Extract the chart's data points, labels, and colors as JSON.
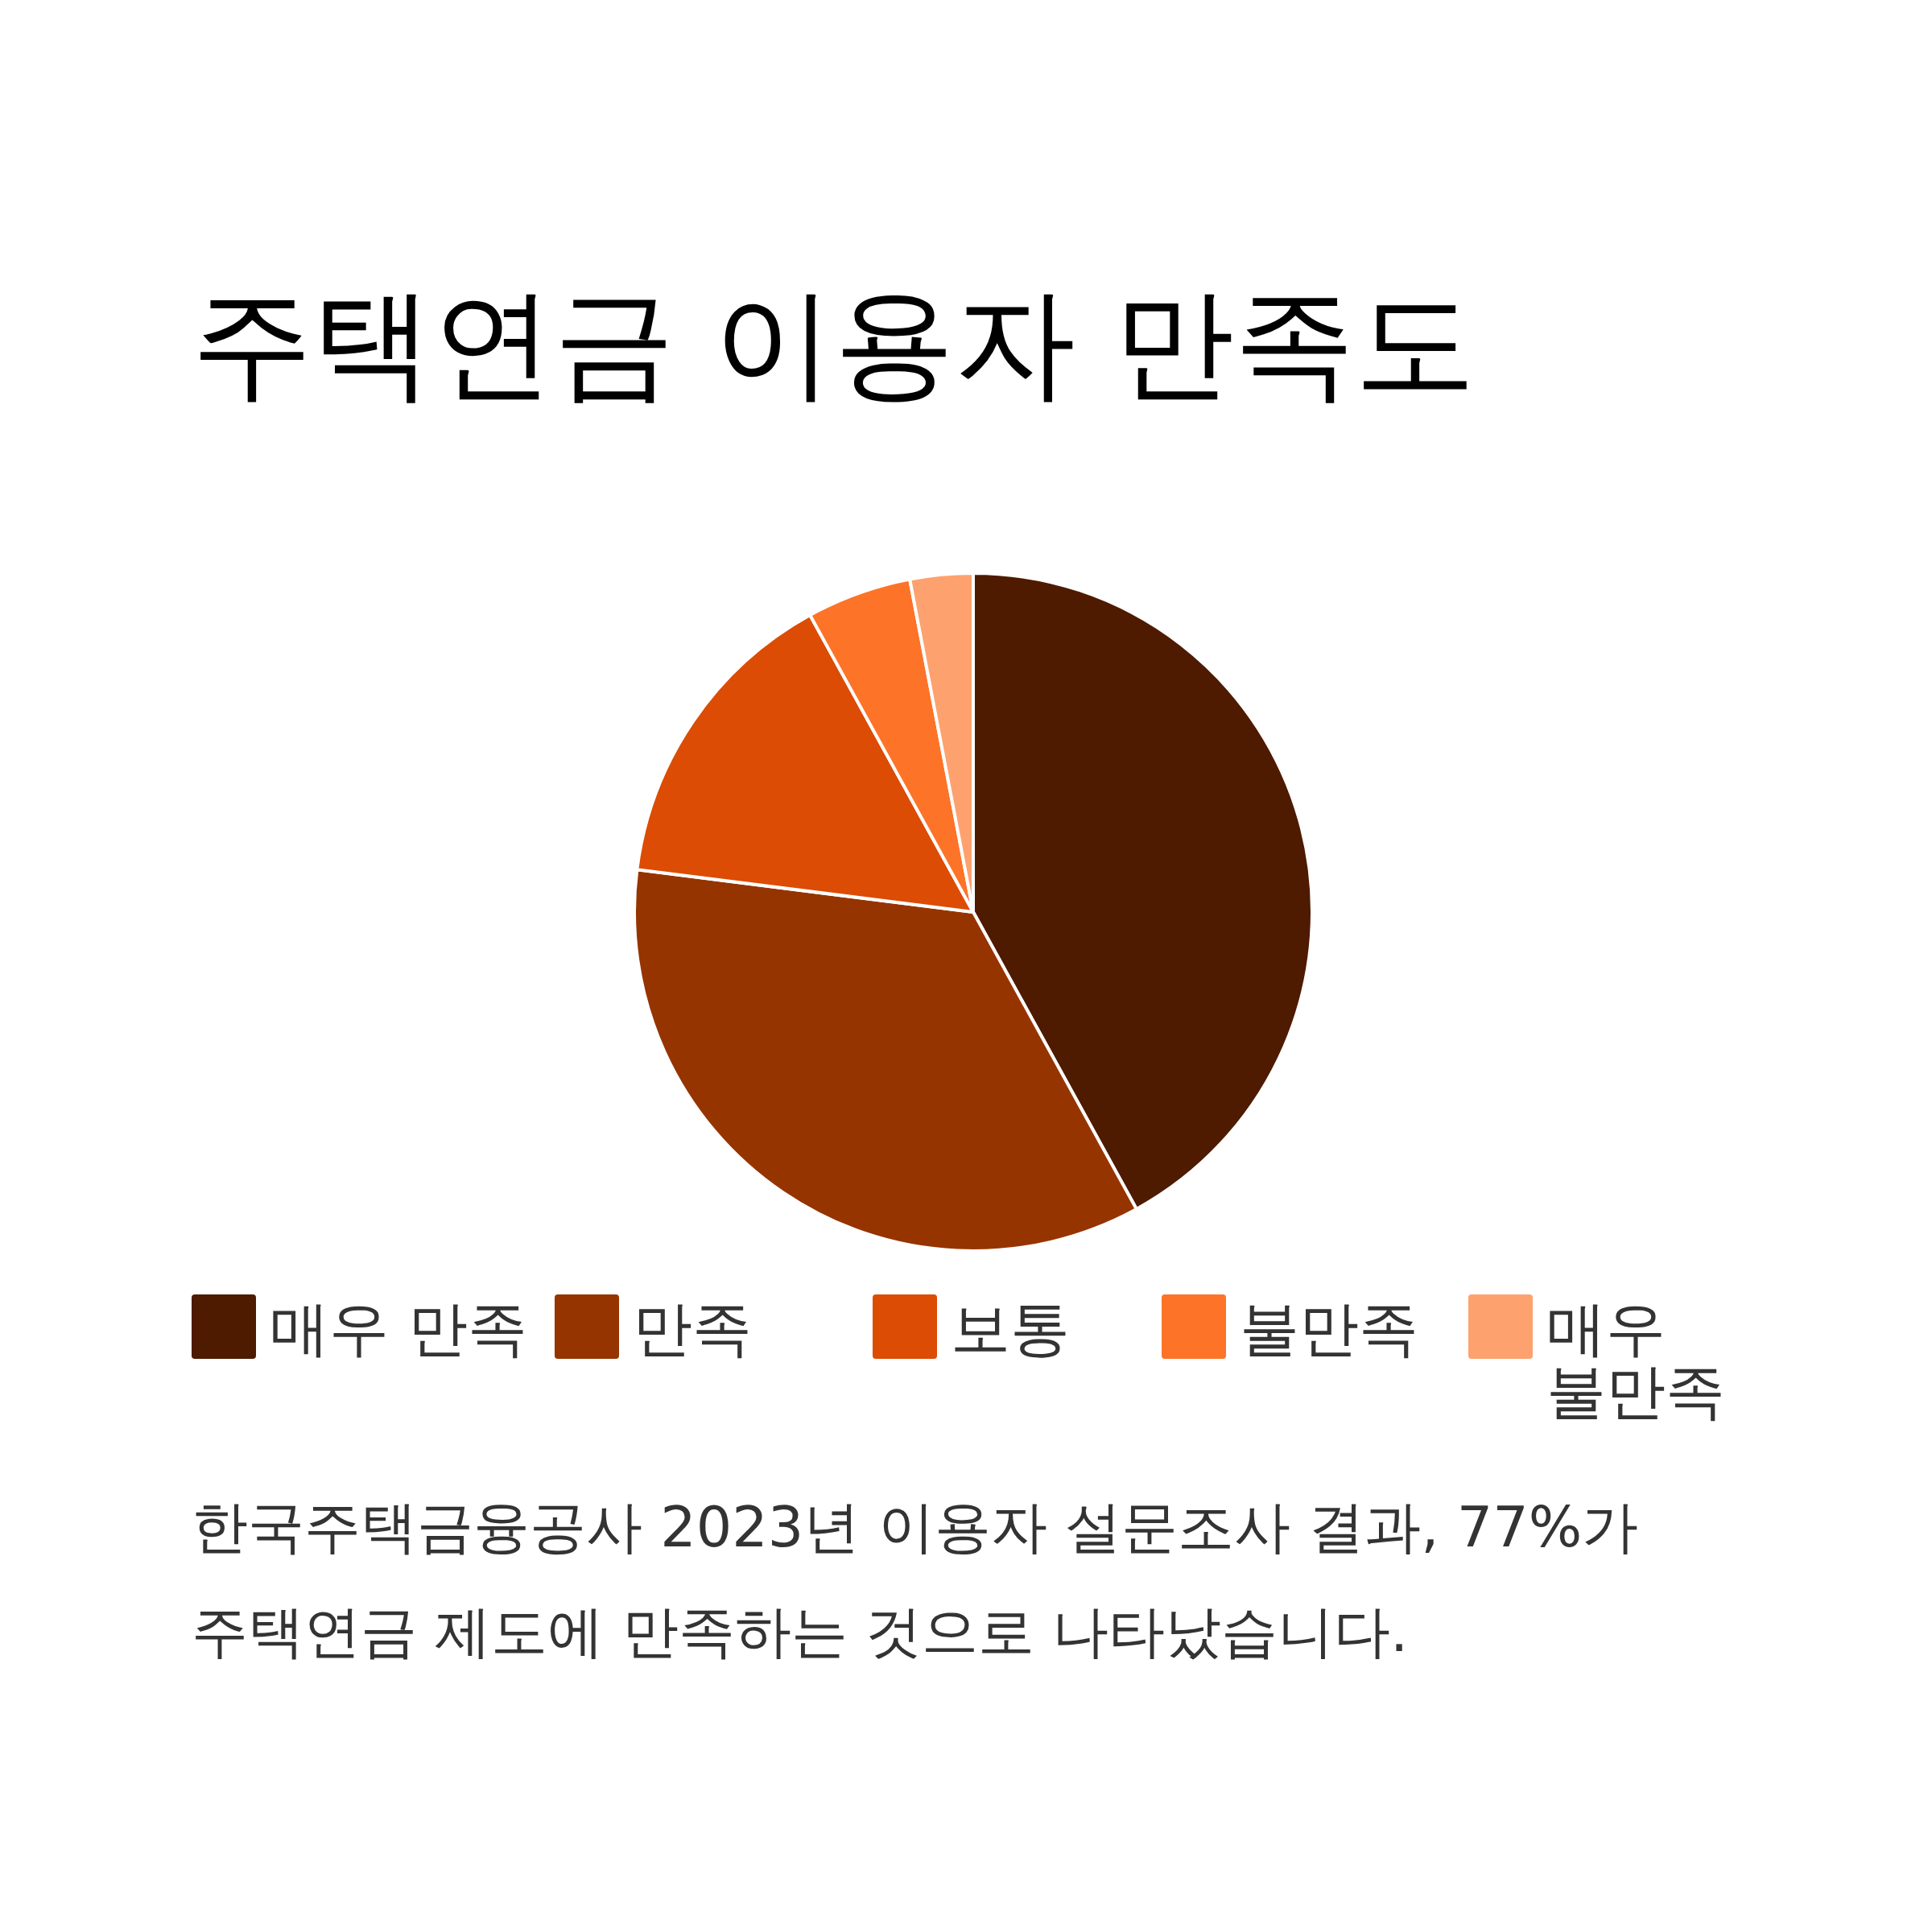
{
  "chart_data": {
    "type": "pie",
    "title": "주택연금 이용자 만족도",
    "categories": [
      "매우 만족",
      "만족",
      "보통",
      "불만족",
      "매우 불만족"
    ],
    "values": [
      42,
      35,
      15,
      5,
      3
    ],
    "colors": [
      "#4e1a00",
      "#963400",
      "#dc4c04",
      "#fd7328",
      "#fda26f"
    ],
    "legend": "bottom",
    "annotations": [
      "한국주택금융공사 2023년 이용자 설문조사 결과, 77%가 주택연금 제도에 만족하는 것으로 나타났습니다."
    ]
  }
}
